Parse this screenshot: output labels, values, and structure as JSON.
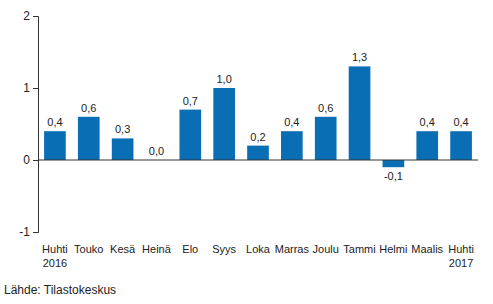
{
  "chart_data": {
    "type": "bar",
    "categories": [
      "Huhti 2016",
      "Touko",
      "Kesä",
      "Heinä",
      "Elo",
      "Syys",
      "Loka",
      "Marras",
      "Joulu",
      "Tammi",
      "Helmi",
      "Maalis",
      "Huhti 2017"
    ],
    "values": [
      0.4,
      0.6,
      0.3,
      0.0,
      0.7,
      1.0,
      0.2,
      0.4,
      0.6,
      1.3,
      -0.1,
      0.4,
      0.4
    ],
    "value_labels": [
      "0,4",
      "0,6",
      "0,3",
      "0,0",
      "0,7",
      "1,0",
      "0,2",
      "0,4",
      "0,6",
      "1,3",
      "-0,1",
      "0,4",
      "0,4"
    ],
    "data_labels": true,
    "color": "#0a6eb4",
    "ylim": [
      -1,
      2
    ],
    "yticks": [
      -1,
      0,
      1,
      2
    ],
    "grid": false,
    "source": "Lähde: Tilastokeskus"
  }
}
